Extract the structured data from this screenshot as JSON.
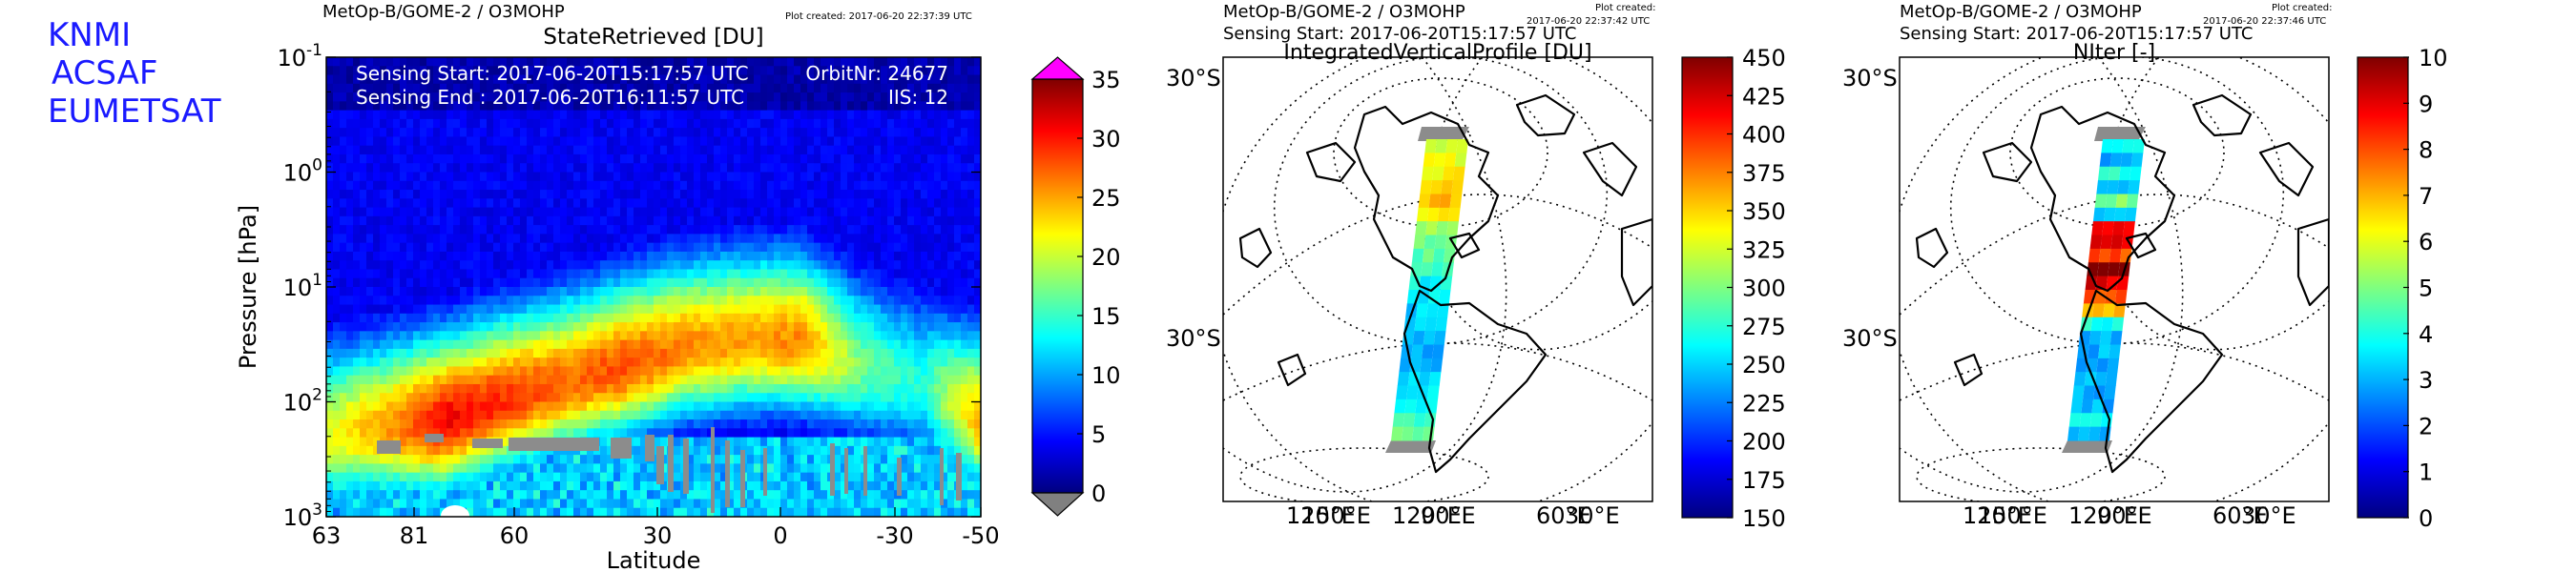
{
  "organization": [
    "KNMI",
    "ACSAF",
    "EUMETSAT"
  ],
  "chart_data": [
    {
      "type": "heatmap",
      "header": "MetOp-B/GOME-2 / O3MOHP",
      "plot_created": "Plot created: 2017-06-20 22:37:39 UTC",
      "title": "StateRetrieved [DU]",
      "xlabel": "Latitude",
      "ylabel": "Pressure [hPa]",
      "yscale": "log",
      "ylim": [
        1000,
        0.1
      ],
      "x_tick_labels": [
        "63",
        "81",
        "60",
        "30",
        "0",
        "-30",
        "-50"
      ],
      "y_tick_labels": [
        {
          "base": "10",
          "exp": "-1"
        },
        {
          "base": "10",
          "exp": "0"
        },
        {
          "base": "10",
          "exp": "1"
        },
        {
          "base": "10",
          "exp": "2"
        },
        {
          "base": "10",
          "exp": "3"
        }
      ],
      "annotations": {
        "sensing_start": "Sensing Start: 2017-06-20T15:17:57 UTC",
        "sensing_end": "Sensing End  : 2017-06-20T16:11:57 UTC",
        "orbit": "OrbitNr: 24677",
        "iis": "IIS: 12"
      },
      "colorbar": {
        "range": [
          0,
          35
        ],
        "ticks": [
          "0",
          "5",
          "10",
          "15",
          "20",
          "25",
          "30",
          "35"
        ],
        "over_color": "#ff00ff",
        "under_color": "#808080",
        "colormap": "jet"
      },
      "layer_profile": [
        {
          "lat": 63,
          "peak_hpa": 200,
          "max_du": 21
        },
        {
          "lat": 81,
          "peak_hpa": 170,
          "max_du": 25
        },
        {
          "lat": 75,
          "peak_hpa": 150,
          "max_du": 31
        },
        {
          "lat": 60,
          "peak_hpa": 100,
          "max_du": 29
        },
        {
          "lat": 45,
          "peak_hpa": 70,
          "max_du": 27
        },
        {
          "lat": 30,
          "peak_hpa": 50,
          "max_du": 28
        },
        {
          "lat": 15,
          "peak_hpa": 35,
          "max_du": 26
        },
        {
          "lat": 0,
          "peak_hpa": 30,
          "max_du": 25
        },
        {
          "lat": -15,
          "peak_hpa": 30,
          "max_du": 26
        },
        {
          "lat": -30,
          "peak_hpa": 50,
          "max_du": 17
        },
        {
          "lat": -40,
          "peak_hpa": 70,
          "max_du": 14
        },
        {
          "lat": -50,
          "peak_hpa": 150,
          "max_du": 25
        }
      ]
    },
    {
      "type": "map",
      "header": "MetOp-B/GOME-2 / O3MOHP",
      "plot_created": "Plot created:",
      "plot_created_time": "2017-06-20 22:37:42 UTC",
      "sensing_start": "Sensing Start: 2017-06-20T15:17:57 UTC",
      "title": "IntegratedVerticalProfile [DU]",
      "lat_labels": [
        "30°S",
        "30°S"
      ],
      "lon_labels": [
        "120°E",
        "150°E",
        "120°E",
        "90°E",
        "60°E",
        "30°E"
      ],
      "colorbar": {
        "range": [
          150,
          450
        ],
        "ticks": [
          "150",
          "175",
          "200",
          "225",
          "250",
          "275",
          "300",
          "325",
          "350",
          "375",
          "400",
          "425",
          "450"
        ],
        "colormap": "jet"
      },
      "swath_values": [
        315,
        330,
        340,
        355,
        360,
        345,
        310,
        300,
        290,
        275,
        265,
        255,
        250,
        245,
        245,
        240,
        245,
        250,
        255,
        270,
        285,
        300
      ]
    },
    {
      "type": "map",
      "header": "MetOp-B/GOME-2 / O3MOHP",
      "plot_created": "Plot created:",
      "plot_created_time": "2017-06-20 22:37:46 UTC",
      "sensing_start": "Sensing Start: 2017-06-20T15:17:57 UTC",
      "title": "NIter [-]",
      "lat_labels": [
        "30°S",
        "30°S"
      ],
      "lon_labels": [
        "120°E",
        "150°E",
        "120°E",
        "90°E",
        "60°E",
        "30°E"
      ],
      "colorbar": {
        "range": [
          0,
          10
        ],
        "ticks": [
          "0",
          "1",
          "2",
          "3",
          "4",
          "5",
          "6",
          "7",
          "8",
          "9",
          "10"
        ],
        "colormap": "jet"
      },
      "swath_values": [
        4,
        3,
        4,
        3,
        5,
        3,
        9,
        9,
        8,
        10,
        9,
        8,
        7,
        4,
        3,
        3,
        3,
        3,
        3,
        3,
        4,
        3
      ]
    }
  ]
}
